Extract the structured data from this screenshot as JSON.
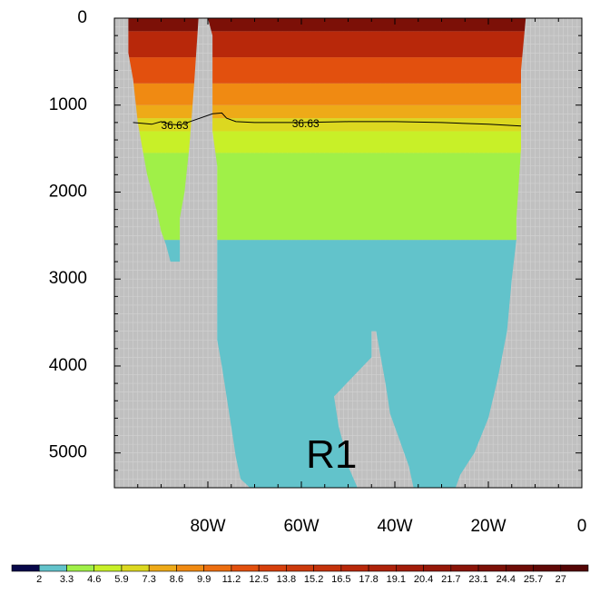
{
  "chart_data": {
    "type": "heatmap",
    "title": "",
    "xlabel": "",
    "ylabel": "",
    "x_axis": {
      "range": [
        -100,
        0
      ],
      "tick_values": [
        -80,
        -60,
        -40,
        -20,
        0
      ],
      "tick_labels": [
        "80W",
        "60W",
        "40W",
        "20W",
        "0"
      ]
    },
    "y_axis": {
      "range": [
        0,
        5400
      ],
      "inverted": true,
      "tick_values": [
        0,
        1000,
        2000,
        3000,
        4000,
        5000
      ],
      "tick_labels": [
        "0",
        "1000",
        "2000",
        "3000",
        "4000",
        "5000"
      ]
    },
    "missing_color": "#c0c0c0",
    "grid": true,
    "colorbar": {
      "placement": "bottom",
      "labels": [
        "2",
        "3.3",
        "4.6",
        "5.9",
        "7.3",
        "8.6",
        "9.9",
        "11.2",
        "12.5",
        "13.8",
        "15.2",
        "16.5",
        "17.8",
        "19.1",
        "20.4",
        "21.7",
        "23.1",
        "24.4",
        "25.7",
        "27"
      ],
      "colors": [
        "#08084a",
        "#62c3cb",
        "#a0f048",
        "#c8f028",
        "#dcd820",
        "#eeaa18",
        "#f08a12",
        "#ec6e10",
        "#e2500e",
        "#d6400c",
        "#cc3a0c",
        "#c4320b",
        "#b8280a",
        "#ae220a",
        "#a21c09",
        "#961808",
        "#8a1408",
        "#7c1007",
        "#6e0c06",
        "#600806",
        "#540505"
      ]
    },
    "layers": [
      {
        "value_range": "2.0-3.3",
        "color": "#62c3cb",
        "depth_range": [
          2550,
          5400
        ]
      },
      {
        "value_range": "3.3-4.6",
        "color": "#a0f048",
        "depth_range": [
          1550,
          2550
        ]
      },
      {
        "value_range": "4.6-5.9",
        "color": "#c8f028",
        "depth_range": [
          1300,
          1550
        ]
      },
      {
        "value_range": "5.9-7.3",
        "color": "#dcd820",
        "depth_range": [
          1150,
          1300
        ]
      },
      {
        "value_range": "7.3-8.6",
        "color": "#eeaa18",
        "depth_range": [
          1000,
          1150
        ]
      },
      {
        "value_range": "8.6-12.5",
        "color": "#f08a12",
        "depth_range": [
          750,
          1000
        ]
      },
      {
        "value_range": "12.5-17.8",
        "color": "#e2500e",
        "depth_range": [
          450,
          750
        ]
      },
      {
        "value_range": "17.8-23.1",
        "color": "#b8280a",
        "depth_range": [
          150,
          450
        ]
      },
      {
        "value_range": "23.1-27+",
        "color": "#7c1007",
        "depth_range": [
          0,
          150
        ]
      }
    ],
    "contour": {
      "level": "36.63",
      "labels": [
        "36.63",
        "36.63"
      ],
      "points": [
        [
          -96,
          1200
        ],
        [
          -92,
          1220
        ],
        [
          -90,
          1190
        ],
        [
          -88,
          1220
        ],
        [
          -86,
          1230
        ],
        [
          -79,
          1100
        ],
        [
          -77,
          1090
        ],
        [
          -76,
          1150
        ],
        [
          -74,
          1190
        ],
        [
          -70,
          1200
        ],
        [
          -60,
          1200
        ],
        [
          -50,
          1190
        ],
        [
          -40,
          1190
        ],
        [
          -30,
          1200
        ],
        [
          -20,
          1220
        ],
        [
          -13,
          1240
        ]
      ]
    },
    "annotations": [
      "R1"
    ]
  }
}
